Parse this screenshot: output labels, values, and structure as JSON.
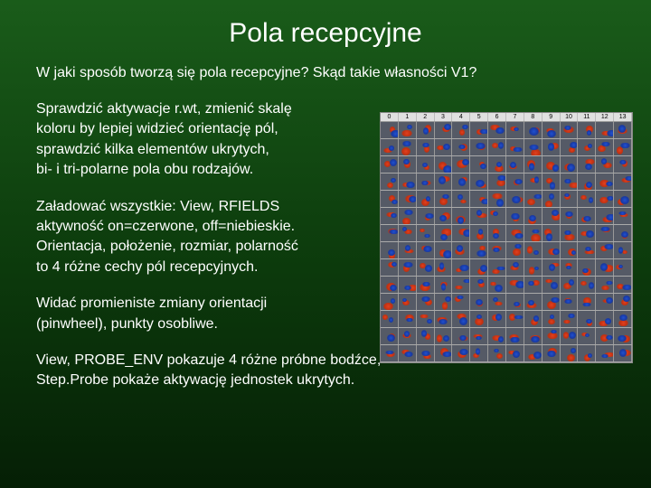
{
  "title": "Pola recepcyjne",
  "subtitle": "W jaki sposób tworzą się pola recepcyjne? Skąd takie własności V1?",
  "para1_l1": "Sprawdzić aktywacje r.wt, zmienić skalę",
  "para1_l2": "koloru by lepiej widzieć orientację pól,",
  "para1_l3": "sprawdzić kilka elementów ukrytych,",
  "para1_l4": "bi- i tri-polarne pola obu rodzajów.",
  "para2_l1": "Załadować wszystkie: View, RFIELDS",
  "para2_l2": "aktywność on=czerwone, off=niebieskie.",
  "para2_l3": "Orientacja, położenie, rozmiar, polarność",
  "para2_l4": "to 4 różne cechy pól recepcyjnych.",
  "para3_l1": "Widać promieniste zmiany orientacji",
  "para3_l2": "(pinwheel), punkty osobliwe.",
  "footer_l1": "View, PROBE_ENV pokazuje 4 różne próbne bodźce,",
  "footer_l2": "Step.Probe pokaże aktywację jednostek ukrytych.",
  "grid": {
    "cols": 14,
    "rows": 14,
    "headers": [
      "0",
      "1",
      "2",
      "3",
      "4",
      "5",
      "6",
      "7",
      "8",
      "9",
      "10",
      "11",
      "12",
      "13"
    ]
  }
}
